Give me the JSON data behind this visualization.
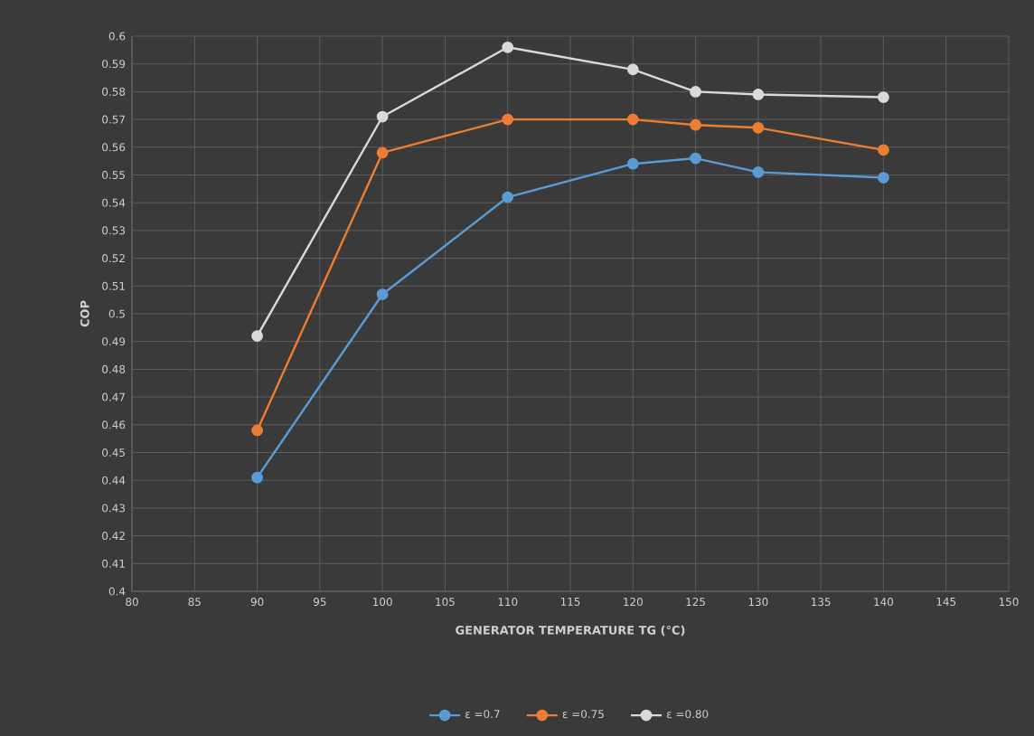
{
  "chart_data": {
    "type": "line",
    "xlabel": "GENERATOR TEMPERATURE TG (°C)",
    "ylabel": "COP",
    "x": [
      90,
      100,
      110,
      120,
      125,
      130,
      140
    ],
    "series": [
      {
        "name": "ε =0.7",
        "color": "#5b9bd5",
        "values": [
          0.441,
          0.507,
          0.542,
          0.554,
          0.556,
          0.551,
          0.549
        ]
      },
      {
        "name": "ε =0.75",
        "color": "#ed7d31",
        "values": [
          0.458,
          0.558,
          0.57,
          0.57,
          0.568,
          0.567,
          0.559
        ]
      },
      {
        "name": "ε =0.80",
        "color": "#d9d9d9",
        "values": [
          0.492,
          0.571,
          0.596,
          0.588,
          0.58,
          0.579,
          0.578
        ]
      }
    ],
    "xlim": [
      80,
      150
    ],
    "ylim": [
      0.4,
      0.6
    ],
    "xticks": [
      80,
      85,
      90,
      95,
      100,
      105,
      110,
      115,
      120,
      125,
      130,
      135,
      140,
      145,
      150
    ],
    "yticks": [
      0.4,
      0.41,
      0.42,
      0.43,
      0.44,
      0.45,
      0.46,
      0.47,
      0.48,
      0.49,
      0.5,
      0.51,
      0.52,
      0.53,
      0.54,
      0.55,
      0.56,
      0.57,
      0.58,
      0.59,
      0.6
    ],
    "grid": true,
    "legend": "bottom",
    "marker": "circle",
    "line_style": "solid"
  }
}
